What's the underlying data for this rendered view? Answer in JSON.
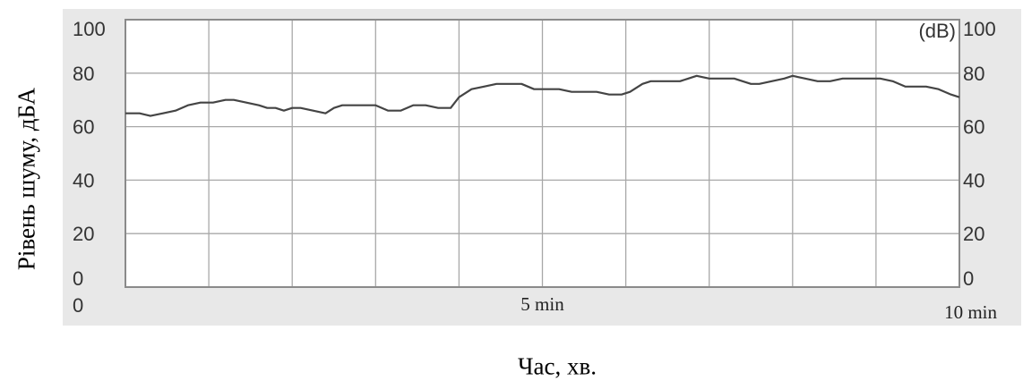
{
  "chart_data": {
    "type": "line",
    "xlabel": "Час, хв.",
    "ylabel": "Рівень шуму, дБА",
    "unit_label": "(dB)",
    "xlim": [
      0,
      10
    ],
    "ylim": [
      0,
      100
    ],
    "grid": true,
    "y_ticks": [
      "100",
      "80",
      "60",
      "40",
      "20",
      "0"
    ],
    "y_tick_values": [
      100,
      80,
      60,
      40,
      20,
      0
    ],
    "x_tick_labels": [
      {
        "value": 0,
        "label": "0"
      },
      {
        "value": 5,
        "label": "5 min"
      },
      {
        "value": 10,
        "label": "10 min"
      }
    ],
    "series": [
      {
        "x": [
          0,
          0.17,
          0.3,
          0.45,
          0.6,
          0.75,
          0.9,
          1.05,
          1.2,
          1.3,
          1.45,
          1.6,
          1.7,
          1.8,
          1.9,
          2.0,
          2.1,
          2.25,
          2.4,
          2.5,
          2.6,
          2.75,
          2.9,
          3.0,
          3.15,
          3.3,
          3.45,
          3.6,
          3.75,
          3.9,
          4.0,
          4.15,
          4.3,
          4.45,
          4.6,
          4.75,
          4.9,
          5.05,
          5.2,
          5.35,
          5.5,
          5.65,
          5.8,
          5.95,
          6.05,
          6.2,
          6.3,
          6.5,
          6.65,
          6.75,
          6.85,
          7.0,
          7.1,
          7.3,
          7.4,
          7.5,
          7.6,
          7.75,
          7.9,
          8.0,
          8.15,
          8.3,
          8.45,
          8.6,
          8.75,
          8.9,
          9.05,
          9.2,
          9.35,
          9.5,
          9.6,
          9.75,
          9.9,
          10.0
        ],
        "values": [
          65,
          65,
          64,
          65,
          66,
          68,
          69,
          69,
          70,
          70,
          69,
          68,
          67,
          67,
          66,
          67,
          67,
          66,
          65,
          67,
          68,
          68,
          68,
          68,
          66,
          66,
          68,
          68,
          67,
          67,
          71,
          74,
          75,
          76,
          76,
          76,
          74,
          74,
          74,
          73,
          73,
          73,
          72,
          72,
          73,
          76,
          77,
          77,
          77,
          78,
          79,
          78,
          78,
          78,
          77,
          76,
          76,
          77,
          78,
          79,
          78,
          77,
          77,
          78,
          78,
          78,
          78,
          77,
          75,
          75,
          75,
          74,
          72,
          71
        ]
      }
    ]
  }
}
